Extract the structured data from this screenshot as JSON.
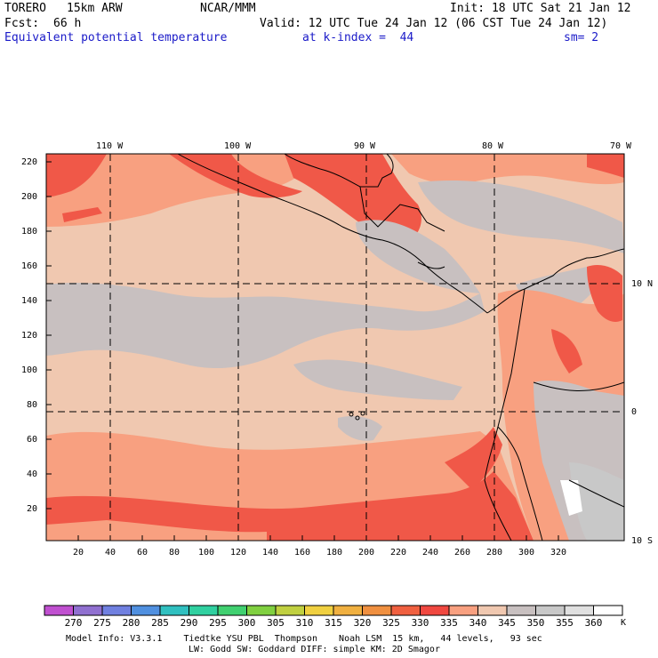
{
  "header": {
    "model": "TORERO",
    "resolution": "15km ARW",
    "org": "NCAR/MMM",
    "init": "Init: 18 UTC Sat 21 Jan 12",
    "fcst_label": "Fcst:",
    "fcst_value": "66 h",
    "valid": "Valid: 12 UTC Tue 24 Jan 12 (06 CST Tue 24 Jan 12)",
    "field": "Equivalent potential temperature",
    "level": "at k-index =  44",
    "smoothing": "sm= 2"
  },
  "map": {
    "lon_labels": [
      "110 W",
      "100 W",
      "90 W",
      "80 W",
      "70 W"
    ],
    "lat_labels": [
      "10 N",
      "0",
      "10 S"
    ],
    "y_ticks": [
      "220",
      "200",
      "180",
      "160",
      "140",
      "120",
      "100",
      "80",
      "60",
      "40",
      "20"
    ],
    "x_ticks": [
      "20",
      "40",
      "60",
      "80",
      "100",
      "120",
      "140",
      "160",
      "180",
      "200",
      "220",
      "240",
      "260",
      "280",
      "300",
      "320"
    ]
  },
  "colorbar": {
    "unit": "K",
    "labels": [
      "270",
      "275",
      "280",
      "285",
      "290",
      "295",
      "300",
      "305",
      "310",
      "315",
      "320",
      "325",
      "330",
      "335",
      "340",
      "345",
      "350",
      "355",
      "360"
    ],
    "colors": [
      "#c050d0",
      "#9070d0",
      "#7080e0",
      "#5090e0",
      "#30c0c0",
      "#30d0a0",
      "#40d070",
      "#80d040",
      "#c0d040",
      "#f0d040",
      "#f0b040",
      "#f09040",
      "#f06040",
      "#f04840",
      "#f8a080",
      "#f0c8b0",
      "#c8c0c0",
      "#c8c8c8",
      "#e0e0e0",
      "#ffffff"
    ]
  },
  "footer": {
    "line1": "Model Info: V3.3.1    Tiedtke YSU PBL  Thompson    Noah LSM  15 km,   44 levels,   93 sec",
    "line2": "LW: Godd SW: Goddard DIFF: simple KM: 2D Smagor"
  }
}
